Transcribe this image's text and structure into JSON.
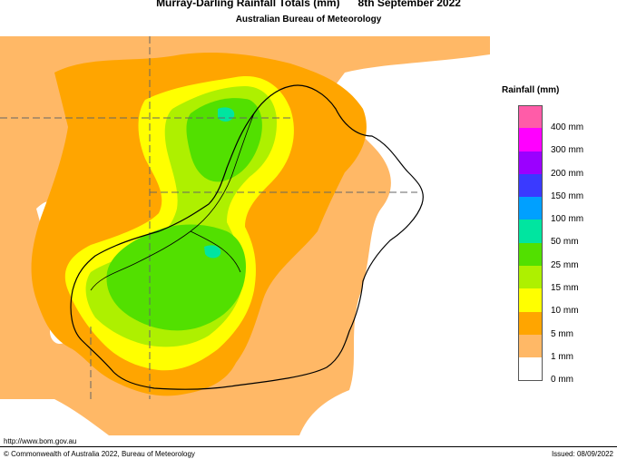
{
  "header": {
    "title": "Murray-Darling Rainfall Totals (mm)      8th September 2022",
    "subtitle": "Australian Bureau of Meteorology"
  },
  "legend": {
    "title": "Rainfall (mm)",
    "items": [
      {
        "label": "400 mm",
        "color": "#ff5ca8"
      },
      {
        "label": "300 mm",
        "color": "#ff00ff"
      },
      {
        "label": "200 mm",
        "color": "#9b00ff"
      },
      {
        "label": "150 mm",
        "color": "#3a3aff"
      },
      {
        "label": "100 mm",
        "color": "#00a0ff"
      },
      {
        "label": "50 mm",
        "color": "#00e5a0"
      },
      {
        "label": "25 mm",
        "color": "#52e000"
      },
      {
        "label": "15 mm",
        "color": "#aef000"
      },
      {
        "label": "10 mm",
        "color": "#ffff00"
      },
      {
        "label": "5 mm",
        "color": "#ffa500"
      },
      {
        "label": "1 mm",
        "color": "#ffb866"
      },
      {
        "label": "0 mm",
        "color": "#ffffff"
      }
    ]
  },
  "footer": {
    "url": "http://www.bom.gov.au",
    "copyright": "© Commonwealth of Australia 2022, Bureau of Meteorology",
    "issued": "Issued: 08/09/2022"
  }
}
